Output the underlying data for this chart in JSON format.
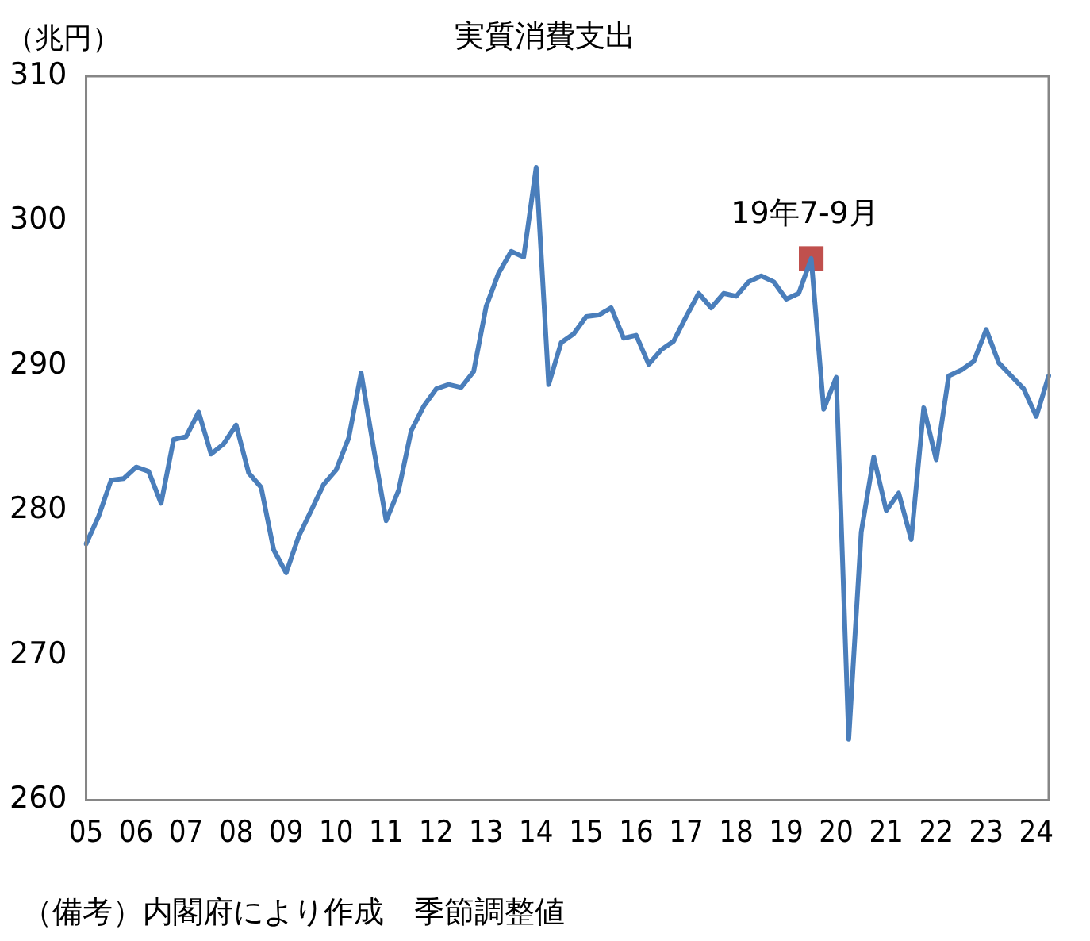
{
  "chart_data": {
    "type": "line",
    "title": "実質消費支出",
    "ylabel": "（兆円）",
    "categories": [
      "05",
      null,
      null,
      null,
      "06",
      null,
      null,
      null,
      "07",
      null,
      null,
      null,
      "08",
      null,
      null,
      null,
      "09",
      null,
      null,
      null,
      "10",
      null,
      null,
      null,
      "11",
      null,
      null,
      null,
      "12",
      null,
      null,
      null,
      "13",
      null,
      null,
      null,
      "14",
      null,
      null,
      null,
      "15",
      null,
      null,
      null,
      "16",
      null,
      null,
      null,
      "17",
      null,
      null,
      null,
      "18",
      null,
      null,
      null,
      "19",
      null,
      null,
      null,
      "20",
      null,
      null,
      null,
      "21",
      null,
      null,
      null,
      "22",
      null,
      null,
      null,
      "23",
      null,
      null,
      null,
      "24",
      null
    ],
    "series": [
      {
        "color": "#4a7ebb",
        "marker": "none",
        "line_style": "solid",
        "values": [
          277.7,
          279.6,
          282.1,
          282.2,
          283.0,
          282.7,
          280.5,
          284.9,
          285.1,
          286.8,
          283.9,
          284.6,
          285.9,
          282.6,
          281.6,
          277.3,
          275.7,
          278.2,
          280.0,
          281.8,
          282.8,
          285.0,
          289.5,
          284.3,
          279.3,
          281.4,
          285.5,
          287.2,
          288.4,
          288.7,
          288.5,
          289.6,
          294.1,
          296.4,
          297.9,
          297.5,
          303.7,
          288.7,
          291.6,
          292.2,
          293.4,
          293.5,
          294.0,
          291.9,
          292.1,
          290.1,
          291.1,
          291.7,
          293.4,
          295.0,
          294.0,
          295.0,
          294.8,
          295.8,
          296.2,
          295.8,
          294.6,
          295.0,
          297.4,
          287.0,
          289.2,
          264.2,
          278.5,
          283.7,
          280.0,
          281.2,
          278.0,
          287.1,
          283.5,
          289.3,
          289.7,
          290.3,
          292.5,
          290.2,
          289.3,
          288.4,
          286.5,
          289.3
        ]
      },
      {
        "type": "scatter",
        "color": "#c0504d",
        "marker": "square",
        "values": [
          null,
          null,
          null,
          null,
          null,
          null,
          null,
          null,
          null,
          null,
          null,
          null,
          null,
          null,
          null,
          null,
          null,
          null,
          null,
          null,
          null,
          null,
          null,
          null,
          null,
          null,
          null,
          null,
          null,
          null,
          null,
          null,
          null,
          null,
          null,
          null,
          null,
          null,
          null,
          null,
          null,
          null,
          null,
          null,
          null,
          null,
          null,
          null,
          null,
          null,
          null,
          null,
          null,
          null,
          null,
          null,
          null,
          null,
          297.4,
          null,
          null,
          null,
          null,
          null,
          null,
          null,
          null,
          null,
          null,
          null,
          null,
          null,
          null,
          null,
          null,
          null,
          null,
          null
        ]
      }
    ],
    "ylim": [
      260,
      310
    ],
    "yticks": [
      260,
      270,
      280,
      290,
      300,
      310
    ],
    "grid": false,
    "legend": false,
    "annotations": [
      {
        "text": "19年7-9月",
        "y": 297.4
      },
      "（備考）内閣府により作成　季節調整値"
    ]
  }
}
